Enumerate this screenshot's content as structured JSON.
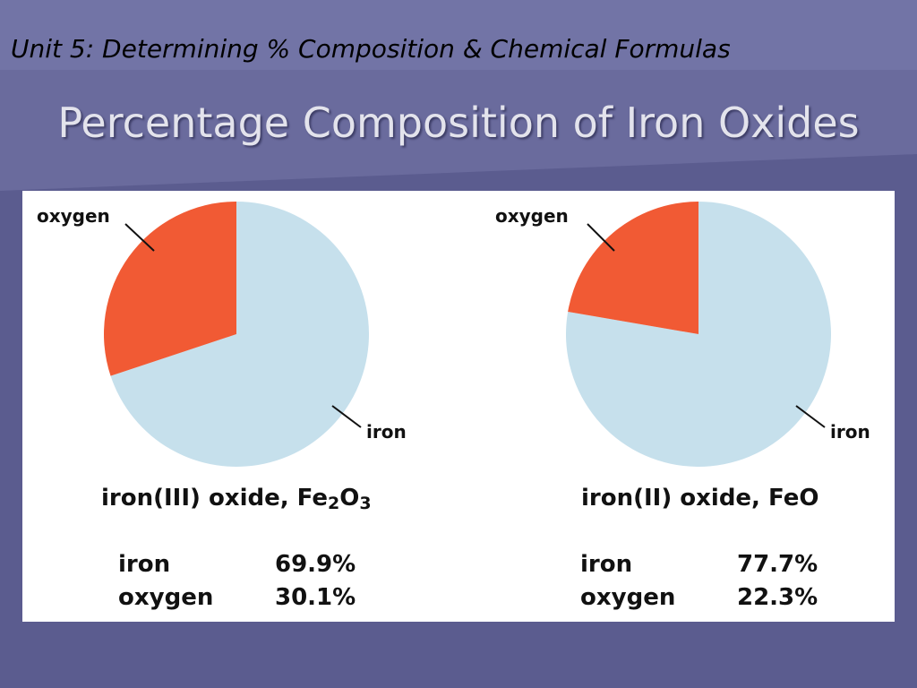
{
  "slide": {
    "unit_title": "Unit 5: Determining % Composition & Chemical Formulas",
    "title": "Percentage Composition of Iron Oxides",
    "colors": {
      "background": "#5b5c8f",
      "header_top": "#7172a4",
      "iron": "#c6e0ec",
      "oxygen": "#f15a34"
    }
  },
  "chart_data": [
    {
      "type": "pie",
      "title_prefix": "iron(III) oxide, Fe",
      "title_sub1": "2",
      "title_mid": "O",
      "title_sub2": "3",
      "slices": [
        {
          "label": "oxygen",
          "value": 30.1,
          "value_label": "30.1%",
          "color": "#f15a34"
        },
        {
          "label": "iron",
          "value": 69.9,
          "value_label": "69.9%",
          "color": "#c6e0ec"
        }
      ]
    },
    {
      "type": "pie",
      "title_prefix": "iron(II) oxide, FeO",
      "title_sub1": "",
      "title_mid": "",
      "title_sub2": "",
      "slices": [
        {
          "label": "oxygen",
          "value": 22.3,
          "value_label": "22.3%",
          "color": "#f15a34"
        },
        {
          "label": "iron",
          "value": 77.7,
          "value_label": "77.7%",
          "color": "#c6e0ec"
        }
      ]
    }
  ]
}
